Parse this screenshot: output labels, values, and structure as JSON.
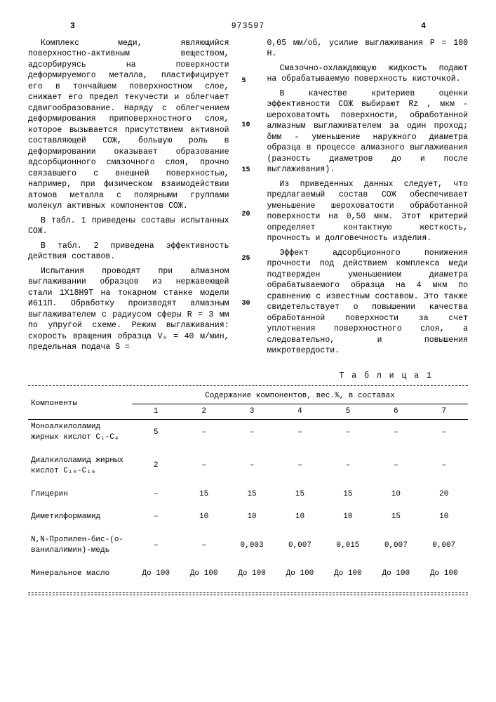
{
  "header": {
    "page_left": "3",
    "docnum": "973597",
    "page_right": "4"
  },
  "left_col": {
    "p1": "Комплекс меди, являющийся поверхностно-активным веществом, адсорбируясь на поверхности деформируемого металла, пластифицирует его в тончайшем поверхностном слое, снижает его предел текучести и облегчает сдвигообразование. Наряду с облегчением деформирования приповерхностного слоя, которое вызывается присутствием активной составляющей СОЖ, большую роль в деформировании оказывает образование адсорбционного смазочного слоя, прочно связавшего с внешней поверхностью, например, при физическом взаимодействии атомов металла с полярными группами молекул активных компонентов СОЖ.",
    "p2": "В табл. 1 приведены составы испытанных СОЖ.",
    "p3": "В табл. 2 приведена эффективность действия составов.",
    "p4": "Испытания проводят при алмазном выглаживании образцов из нержавеющей стали 1Х18Н9Т на токарном станке модели И611П. Обработку производят алмазным выглаживателем с радиусом сферы R = 3 мм по упругой схеме. Режим выглаживания: скорость вращения образца V₀ = 40 м/мин, предельная подача S ="
  },
  "right_col": {
    "p1": "0,05 мм/об, усилие выглаживания P = 100 Н.",
    "p2": "Смазочно-охлаждающую жидкость подают на обрабатываемую поверхность кисточкой.",
    "p3": "В качестве критериев оценки эффективности СОЖ выбирают Rz , мкм - шероховатомть поверхности, обработанной алмазным выглаживателем за один проход; δмм - уменьшение наружного диаметра образца в процессе алмазного выглаживания (разность диаметров до и после выглаживания).",
    "p4": "Из приведенных данных следует, что предлагаемый состав СОЖ обеспечивает уменьшение шероховатости обработанной поверхности на 0,50 мкм. Этот критерий определяет контактную жесткость, прочность и долговечность изделия.",
    "p5": "Эффект адсорбционного понижения прочности под действием комплекса меди подтвержден уменьшением диаметра обрабатываемого образца на 4 мкм по сравнению с известным составом. Это также свидетельствует о повышении качества обработанной поверхности за счет уплотнения поверхностного слоя, а следовательно, и повышения микротвердости."
  },
  "markers": [
    "5",
    "10",
    "15",
    "20",
    "25",
    "30"
  ],
  "table": {
    "title": "Т а б л и ц а  1",
    "header_main": "Компоненты",
    "header_group": "Содержание компонентов, вес.%, в составах",
    "cols": [
      "1",
      "2",
      "3",
      "4",
      "5",
      "6",
      "7"
    ],
    "rows": [
      {
        "label": "Моноалкилоламид жирных кислот C₁-C₄",
        "vals": [
          "5",
          "–",
          "–",
          "–",
          "–",
          "–",
          "–"
        ]
      },
      {
        "label": "Диалкилоламид жирных кислот C₁₀-C₁₆",
        "vals": [
          "2",
          "–",
          "–",
          "–",
          "–",
          "–",
          "–"
        ]
      },
      {
        "label": "Глицерин",
        "vals": [
          "–",
          "15",
          "15",
          "15",
          "15",
          "10",
          "20"
        ]
      },
      {
        "label": "Диметилформамид",
        "vals": [
          "–",
          "10",
          "10",
          "10",
          "10",
          "15",
          "10"
        ]
      },
      {
        "label": "N,N-Пропилен-бис-(о-ванилалимин)-медь",
        "vals": [
          "–",
          "–",
          "0,003",
          "0,007",
          "0,015",
          "0,007",
          "0,007"
        ]
      },
      {
        "label": "Минеральное масло",
        "vals": [
          "До 100",
          "До 100",
          "До 100",
          "До 100",
          "До 100",
          "До 100",
          "До 100"
        ]
      }
    ]
  }
}
